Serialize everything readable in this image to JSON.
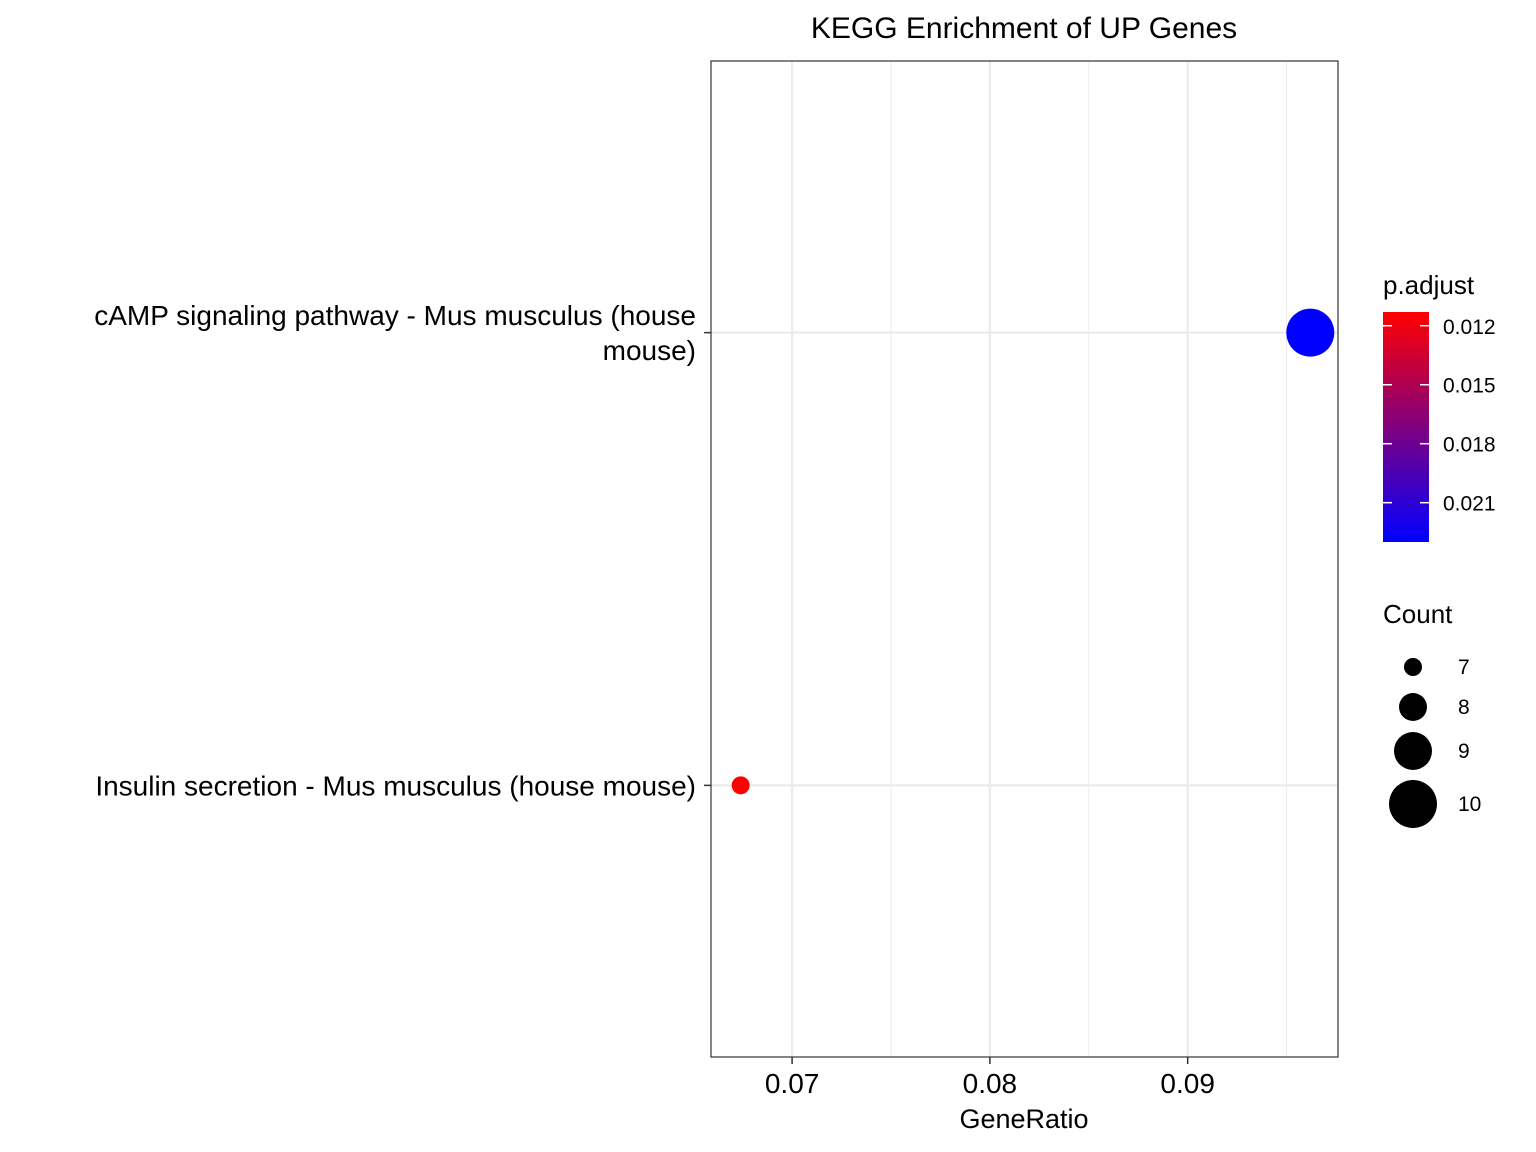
{
  "chart_data": {
    "type": "scatter",
    "title": "KEGG Enrichment of UP Genes",
    "xlabel": "GeneRatio",
    "ylabel": "",
    "xlim": [
      0.0659,
      0.0976
    ],
    "x_ticks": [
      0.07,
      0.08,
      0.09
    ],
    "x_tick_labels": [
      "0.07",
      "0.08",
      "0.09"
    ],
    "categories": [
      "Insulin secretion - Mus musculus (house mouse)",
      "cAMP signaling pathway - Mus musculus (house mouse)"
    ],
    "category_label_lines": [
      [
        "Insulin secretion - Mus musculus (house mouse)"
      ],
      [
        "cAMP signaling pathway - Mus musculus (house",
        "mouse)"
      ]
    ],
    "grid": true,
    "points": [
      {
        "category": "Insulin secretion - Mus musculus (house mouse)",
        "gene_ratio": 0.0674,
        "count": 7,
        "p_adjust": 0.0113
      },
      {
        "category": "cAMP signaling pathway - Mus musculus (house mouse)",
        "gene_ratio": 0.0962,
        "count": 10,
        "p_adjust": 0.023
      }
    ],
    "color_legend": {
      "title": "p.adjust",
      "low_color": "#ff0000",
      "high_color": "#0000ff",
      "range": [
        0.0113,
        0.023
      ],
      "ticks": [
        0.012,
        0.015,
        0.018,
        0.021
      ],
      "tick_labels": [
        "0.012",
        "0.015",
        "0.018",
        "0.021"
      ]
    },
    "size_legend": {
      "title": "Count",
      "values": [
        7,
        8,
        9,
        10
      ],
      "labels": [
        "7",
        "8",
        "9",
        "10"
      ],
      "size_range": [
        7,
        10
      ]
    },
    "legend_position": "right"
  }
}
